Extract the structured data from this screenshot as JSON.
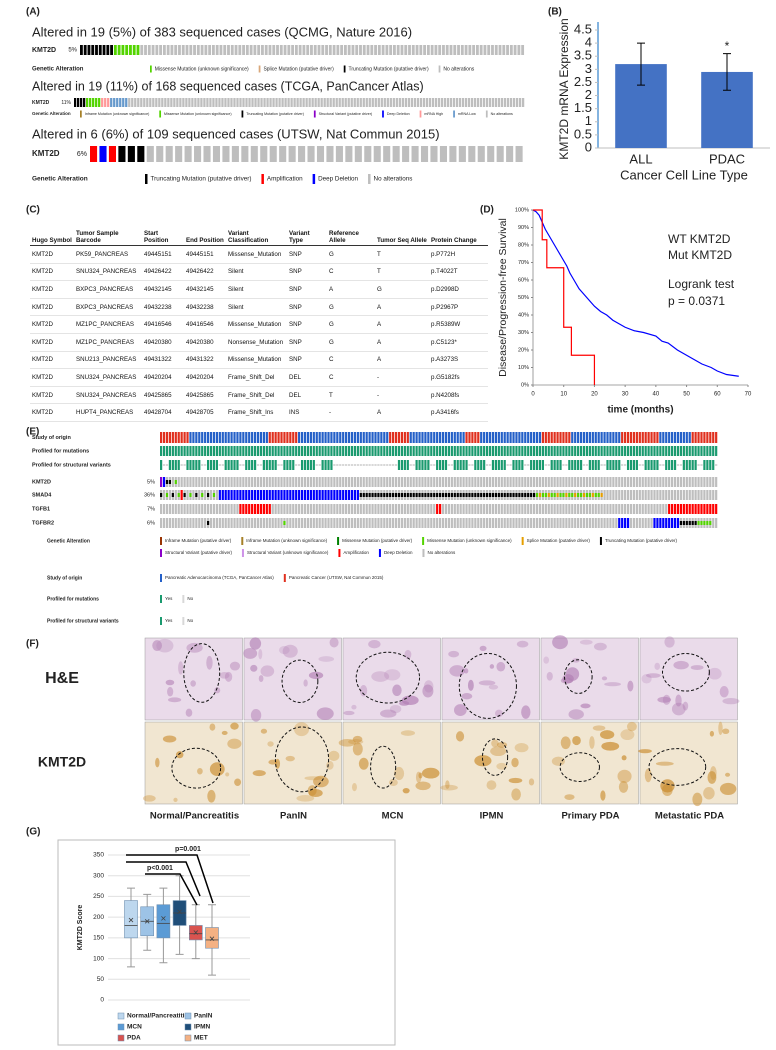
{
  "panel_labels": [
    "(A)",
    "(B)",
    "(C)",
    "(D)",
    "(E)",
    "(F)",
    "(G)"
  ],
  "panel_a": {
    "studies": [
      {
        "title": "Altered in 19 (5%) of 383 sequenced cases (QCMG, Nature 2016)",
        "gene": "KMT2D",
        "percent": "5%",
        "legend_title": "Genetic Alteration",
        "legend": [
          {
            "label": "Missense Mutation (unknown significance)",
            "color": "#53d400"
          },
          {
            "label": "Splice Mutation (putative driver)",
            "color": "#d9a77a"
          },
          {
            "label": "Truncating Mutation (putative driver)",
            "color": "#000000"
          },
          {
            "label": "No alterations",
            "color": "#bebebe"
          }
        ]
      },
      {
        "title": "Altered in 19 (11%) of 168 sequenced cases (TCGA, PanCancer Atlas)",
        "gene": "KMT2D",
        "percent": "11%",
        "legend_title": "Genetic Alteration",
        "legend": [
          {
            "label": "Inframe Mutation (unknown significance)",
            "color": "#a68028"
          },
          {
            "label": "Missense Mutation (unknown significance)",
            "color": "#53d400"
          },
          {
            "label": "Truncating Mutation (putative driver)",
            "color": "#000000"
          },
          {
            "label": "Structural Variant (putative driver)",
            "color": "#8b00c9"
          },
          {
            "label": "Deep Deletion",
            "color": "#0000ff"
          },
          {
            "label": "mRNA High",
            "color": "#ff9999"
          },
          {
            "label": "mRNA Low",
            "color": "#6699cc"
          },
          {
            "label": "No alterations",
            "color": "#bebebe"
          }
        ]
      },
      {
        "title": "Altered in 6 (6%) of 109 sequenced cases (UTSW, Nat Commun 2015)",
        "gene": "KMT2D",
        "percent": "6%",
        "legend_title": "Genetic Alteration",
        "legend": [
          {
            "label": "Truncating Mutation (putative driver)",
            "color": "#000000"
          },
          {
            "label": "Amplification",
            "color": "#ff0000"
          },
          {
            "label": "Deep Deletion",
            "color": "#0000ff"
          },
          {
            "label": "No alterations",
            "color": "#bebebe"
          }
        ]
      }
    ]
  },
  "chart_data": [
    {
      "type": "bar",
      "categories": [
        "ALL",
        "PDAC"
      ],
      "values": [
        3.2,
        2.9
      ],
      "errors": [
        0.8,
        0.7
      ],
      "color": "#4472c4",
      "ylim": [
        0,
        4.5
      ],
      "yticks": [
        0,
        0.5,
        1,
        1.5,
        2,
        2.5,
        3,
        3.5,
        4,
        4.5
      ],
      "y_label": "KMT2D mRNA Expression",
      "x_label": "Cancer Cell Line Type",
      "annotations": [
        "*"
      ]
    },
    {
      "type": "line",
      "x_label": "time (months)",
      "y_label": "Disease/Progression-free Survival",
      "xlim": [
        0,
        70
      ],
      "xticks": [
        0,
        10,
        20,
        30,
        40,
        50,
        60,
        70
      ],
      "ylim": [
        0,
        100
      ],
      "yticks": [
        {
          "value": 0,
          "label": "0%"
        },
        {
          "value": 10,
          "label": "10%"
        },
        {
          "value": 20,
          "label": "20%"
        },
        {
          "value": 30,
          "label": "30%"
        },
        {
          "value": 40,
          "label": "40%"
        },
        {
          "value": 50,
          "label": "50%"
        },
        {
          "value": 60,
          "label": "60%"
        },
        {
          "value": 70,
          "label": "70%"
        },
        {
          "value": 80,
          "label": "80%"
        },
        {
          "value": 90,
          "label": "90%"
        },
        {
          "value": 100,
          "label": "100%"
        }
      ],
      "series": [
        {
          "name": "WT KMT2D",
          "color": "#0000ff",
          "x": [
            0,
            1,
            2,
            3,
            4,
            5,
            6,
            7,
            8,
            9,
            10,
            11,
            12,
            13,
            14,
            15,
            16,
            17,
            18,
            19,
            20,
            22,
            24,
            26,
            28,
            30,
            33,
            36,
            40,
            42,
            44,
            47,
            50,
            52,
            55,
            58,
            60,
            63,
            67
          ],
          "values": [
            100,
            99,
            97,
            93,
            89,
            86,
            83,
            80,
            77,
            74,
            71,
            68,
            64,
            61,
            58,
            55,
            53,
            51,
            49,
            47,
            45,
            42,
            40,
            37,
            35,
            33,
            31,
            30,
            28,
            25,
            24,
            20,
            17,
            15,
            12,
            10,
            8,
            6,
            5
          ]
        },
        {
          "name": "Mut KMT2D",
          "color": "#ff0000",
          "x": [
            0,
            3,
            3,
            4.5,
            4.5,
            10,
            10,
            12.5,
            12.5,
            20,
            20
          ],
          "values": [
            100,
            100,
            83,
            83,
            67,
            67,
            33,
            33,
            17,
            17,
            0
          ]
        }
      ],
      "annotations": [
        "Logrank test",
        "p = 0.0371"
      ]
    },
    {
      "type": "box",
      "y_label": "KMT2D Score",
      "ylim": [
        0,
        350
      ],
      "yticks": [
        0,
        50,
        100,
        150,
        200,
        250,
        300,
        350
      ],
      "series": [
        {
          "name": "Normal/Pancreatitis",
          "color": "#bdd7ee",
          "min": 80,
          "q1": 150,
          "median": 180,
          "q3": 240,
          "max": 270,
          "mean": 193
        },
        {
          "name": "PanIN",
          "color": "#9dc3e6",
          "min": 120,
          "q1": 155,
          "median": 190,
          "q3": 225,
          "max": 255,
          "mean": 190
        },
        {
          "name": "MCN",
          "color": "#5b9bd5",
          "min": 90,
          "q1": 150,
          "median": 185,
          "q3": 230,
          "max": 270,
          "mean": 197
        },
        {
          "name": "IPMN",
          "color": "#1f4e79",
          "min": 110,
          "q1": 180,
          "median": 210,
          "q3": 240,
          "max": 300,
          "mean": 213
        },
        {
          "name": "PDA",
          "color": "#d9534f",
          "min": 100,
          "q1": 145,
          "median": 160,
          "q3": 180,
          "max": 230,
          "mean": 163
        },
        {
          "name": "MET",
          "color": "#f4b183",
          "min": 60,
          "q1": 125,
          "median": 145,
          "q3": 175,
          "max": 230,
          "mean": 148
        }
      ],
      "annotations": [
        "p=0.001",
        "p<0.001"
      ]
    }
  ],
  "panel_c": {
    "columns": [
      "Hugo Symbol",
      "Tumor Sample Barcode",
      "Start Position",
      "End Position",
      "Variant Classification",
      "Variant Type",
      "Reference Allele",
      "Tumor Seq Allele",
      "Protein Change"
    ],
    "rows": [
      [
        "KMT2D",
        "PK59_PANCREAS",
        "49445151",
        "49445151",
        "Missense_Mutation",
        "SNP",
        "G",
        "T",
        "p.P772H"
      ],
      [
        "KMT2D",
        "SNU324_PANCREAS",
        "49426422",
        "49426422",
        "Silent",
        "SNP",
        "C",
        "T",
        "p.T4022T"
      ],
      [
        "KMT2D",
        "BXPC3_PANCREAS",
        "49432145",
        "49432145",
        "Silent",
        "SNP",
        "A",
        "G",
        "p.D2998D"
      ],
      [
        "KMT2D",
        "BXPC3_PANCREAS",
        "49432238",
        "49432238",
        "Silent",
        "SNP",
        "G",
        "A",
        "p.P2967P"
      ],
      [
        "KMT2D",
        "MZ1PC_PANCREAS",
        "49416546",
        "49416546",
        "Missense_Mutation",
        "SNP",
        "G",
        "A",
        "p.R5389W"
      ],
      [
        "KMT2D",
        "MZ1PC_PANCREAS",
        "49420380",
        "49420380",
        "Nonsense_Mutation",
        "SNP",
        "G",
        "A",
        "p.C5123*"
      ],
      [
        "KMT2D",
        "SNU213_PANCREAS",
        "49431322",
        "49431322",
        "Missense_Mutation",
        "SNP",
        "C",
        "A",
        "p.A3273S"
      ],
      [
        "KMT2D",
        "SNU324_PANCREAS",
        "49420204",
        "49420204",
        "Frame_Shift_Del",
        "DEL",
        "C",
        "-",
        "p.G5182fs"
      ],
      [
        "KMT2D",
        "SNU324_PANCREAS",
        "49425865",
        "49425865",
        "Frame_Shift_Del",
        "DEL",
        "T",
        "-",
        "p.N4208fs"
      ],
      [
        "KMT2D",
        "HUPT4_PANCREAS",
        "49428704",
        "49428705",
        "Frame_Shift_Ins",
        "INS",
        "-",
        "A",
        "p.A3416fs"
      ]
    ]
  },
  "panel_e": {
    "tracks": [
      "Study of origin",
      "Profiled for mutations",
      "Profiled for structural variants"
    ],
    "genes": [
      {
        "name": "KMT2D",
        "percent": "5%"
      },
      {
        "name": "SMAD4",
        "percent": "36%"
      },
      {
        "name": "TGFB1",
        "percent": "7%"
      },
      {
        "name": "TGFBR2",
        "percent": "6%"
      }
    ],
    "legends": [
      {
        "title": "Genetic Alteration",
        "items": [
          {
            "label": "Inframe Mutation (putative driver)",
            "color": "#993404"
          },
          {
            "label": "Inframe Mutation (unknown significance)",
            "color": "#a68028"
          },
          {
            "label": "Missense Mutation (putative driver)",
            "color": "#008000"
          },
          {
            "label": "Missense Mutation (unknown significance)",
            "color": "#53d400"
          },
          {
            "label": "Splice Mutation (putative driver)",
            "color": "#e69f00"
          },
          {
            "label": "Truncating Mutation (putative driver)",
            "color": "#000000"
          },
          {
            "label": "Structural Variant (putative driver)",
            "color": "#8b00c9"
          },
          {
            "label": "Structural Variant (unknown significance)",
            "color": "#ce92e8"
          },
          {
            "label": "Amplification",
            "color": "#ff0000"
          },
          {
            "label": "Deep Deletion",
            "color": "#0000ff"
          },
          {
            "label": "No alterations",
            "color": "#bebebe"
          }
        ]
      },
      {
        "title": "Study of origin",
        "items": [
          {
            "label": "Pancreatic Adenocarcinoma (TCGA, PanCancer Atlas)",
            "color": "#2460c8"
          },
          {
            "label": "Pancreatic Cancer (UTSW, Nat Commun 2015)",
            "color": "#e0301e"
          }
        ]
      },
      {
        "title": "Profiled for mutations",
        "items": [
          {
            "label": "Yes",
            "color": "#1a9a6f"
          },
          {
            "label": "No",
            "color": "#d8d8d8"
          }
        ]
      },
      {
        "title": "Profiled for structural variants",
        "items": [
          {
            "label": "Yes",
            "color": "#1a9a6f"
          },
          {
            "label": "No",
            "color": "#d8d8d8"
          }
        ]
      }
    ]
  },
  "panel_f": {
    "rows": [
      "H&E",
      "KMT2D"
    ],
    "columns": [
      "Normal/Pancreatitis",
      "PanIN",
      "MCN",
      "IPMN",
      "Primary PDA",
      "Metastatic PDA"
    ]
  }
}
